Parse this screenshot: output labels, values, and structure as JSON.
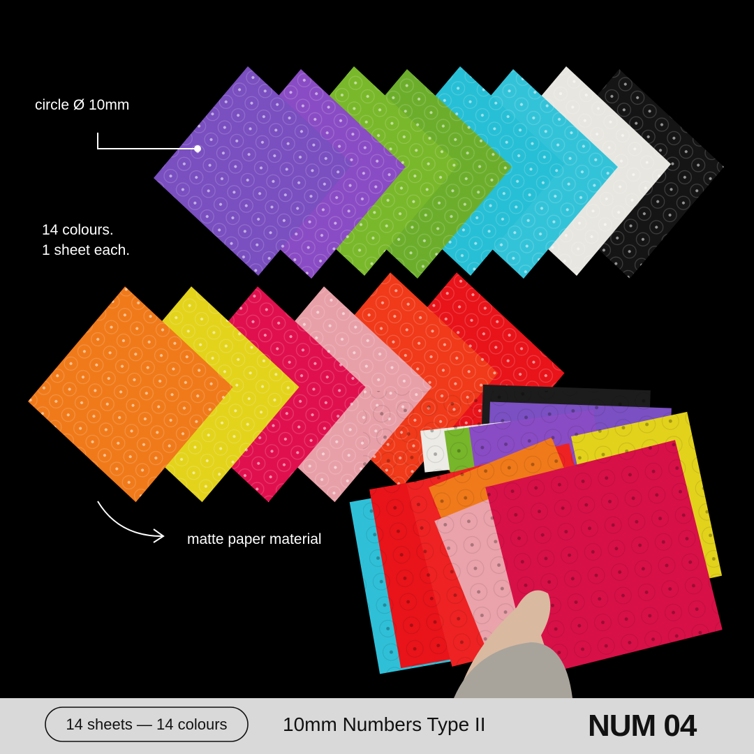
{
  "annotations": {
    "circle": "circle Ø 10mm",
    "colours_line1": "14 colours.",
    "colours_line2": "1 sheet each.",
    "material": "matte paper material"
  },
  "footer": {
    "badge": "14 sheets — 14 colours",
    "product": "10mm Numbers Type II",
    "code": "NUM 04"
  }
}
